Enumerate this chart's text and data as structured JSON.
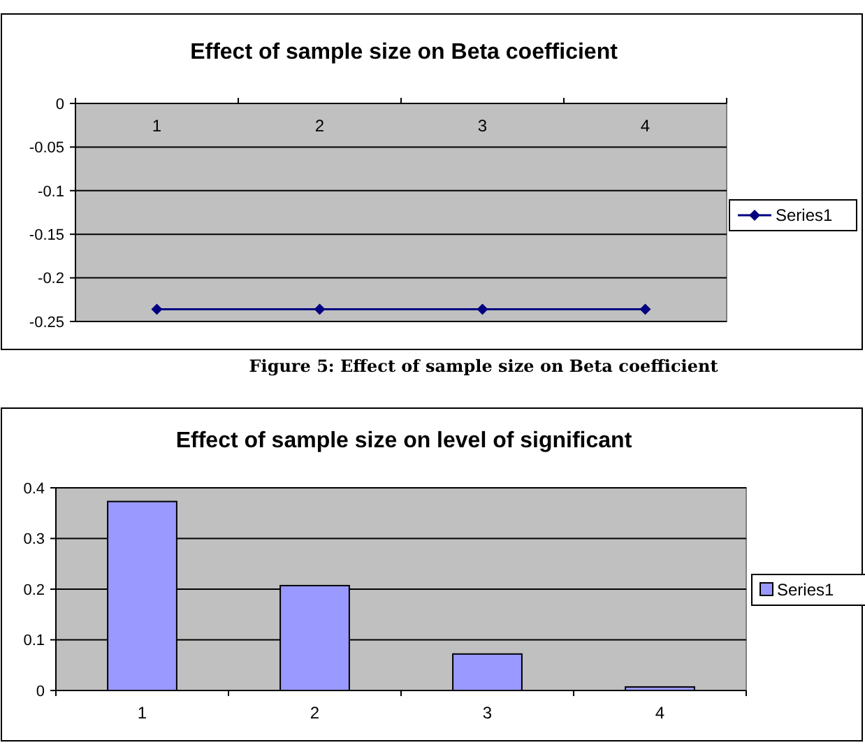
{
  "chart_data": [
    {
      "type": "line",
      "title": "Effect of sample size on Beta coefficient",
      "categories": [
        "1",
        "2",
        "3",
        "4"
      ],
      "series": [
        {
          "name": "Series1",
          "color": "#000080",
          "values": [
            -0.236,
            -0.236,
            -0.236,
            -0.236
          ]
        }
      ],
      "ylim": [
        -0.25,
        0
      ],
      "yticks": [
        0,
        -0.05,
        -0.1,
        -0.15,
        -0.2,
        -0.25
      ],
      "grid": "y",
      "legend": "right",
      "marker": "diamond",
      "line_style": "solid",
      "annotations": [
        "Figure 5: Effect of sample size on Beta coefficient"
      ]
    },
    {
      "type": "bar",
      "title": "Effect of sample size on level of significant",
      "categories": [
        "1",
        "2",
        "3",
        "4"
      ],
      "series": [
        {
          "name": "Series1",
          "color": "#9999ff",
          "values": [
            0.373,
            0.207,
            0.072,
            0.007
          ]
        }
      ],
      "ylim": [
        0,
        0.4
      ],
      "yticks": [
        0,
        0.1,
        0.2,
        0.3,
        0.4
      ],
      "grid": "y",
      "legend": "right"
    }
  ]
}
